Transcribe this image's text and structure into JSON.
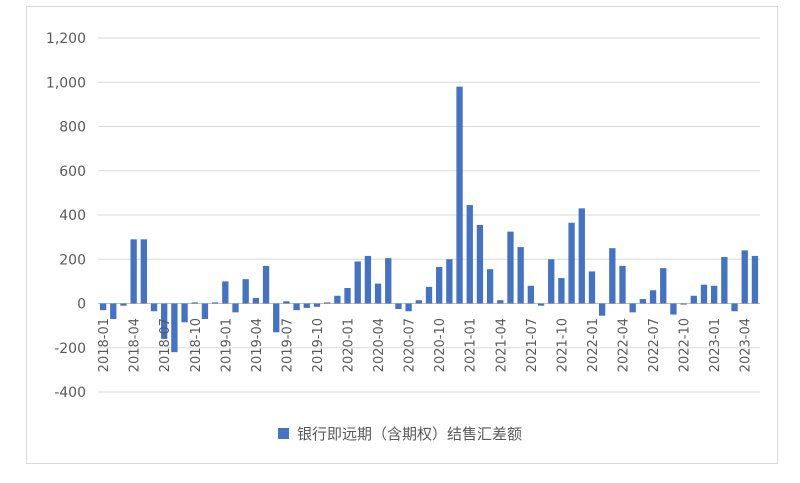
{
  "chart_data": {
    "type": "bar",
    "colors": {
      "bar": "#4472C4",
      "grid": "#d9d9d9",
      "text": "#595959",
      "zero_line": "#bfbfbf"
    },
    "ylim": [
      -400,
      1200
    ],
    "yticks": [
      1200,
      1000,
      800,
      600,
      400,
      200,
      0,
      -200,
      -400
    ],
    "ytick_labels": [
      "1,200",
      "1,000",
      "800",
      "600",
      "400",
      "200",
      "0",
      "-200",
      "-400"
    ],
    "grid": true,
    "legend_position": "bottom",
    "series": [
      {
        "name": "银行即远期（含期权）结售汇差额",
        "values": [
          -30,
          -70,
          -10,
          290,
          290,
          -35,
          -160,
          -220,
          -85,
          5,
          -70,
          5,
          100,
          -40,
          110,
          25,
          170,
          -130,
          10,
          -30,
          -20,
          -15,
          5,
          35,
          70,
          190,
          215,
          90,
          205,
          -25,
          -35,
          15,
          75,
          165,
          200,
          980,
          445,
          355,
          155,
          15,
          325,
          255,
          80,
          -10,
          200,
          115,
          365,
          430,
          145,
          -55,
          250,
          170,
          -40,
          20,
          60,
          160,
          -50,
          -5,
          35,
          85,
          80,
          210,
          -35,
          240,
          215
        ]
      }
    ],
    "tick_labels": [
      {
        "index": 0,
        "label": "2018-01"
      },
      {
        "index": 3,
        "label": "2018-04"
      },
      {
        "index": 6,
        "label": "2018-07"
      },
      {
        "index": 9,
        "label": "2018-10"
      },
      {
        "index": 12,
        "label": "2019-01"
      },
      {
        "index": 15,
        "label": "2019-04"
      },
      {
        "index": 18,
        "label": "2019-07"
      },
      {
        "index": 21,
        "label": "2019-10"
      },
      {
        "index": 24,
        "label": "2020-01"
      },
      {
        "index": 27,
        "label": "2020-04"
      },
      {
        "index": 30,
        "label": "2020-07"
      },
      {
        "index": 33,
        "label": "2020-10"
      },
      {
        "index": 36,
        "label": "2021-01"
      },
      {
        "index": 39,
        "label": "2021-04"
      },
      {
        "index": 42,
        "label": "2021-07"
      },
      {
        "index": 45,
        "label": "2021-10"
      },
      {
        "index": 48,
        "label": "2022-01"
      },
      {
        "index": 51,
        "label": "2022-04"
      },
      {
        "index": 54,
        "label": "2022-07"
      },
      {
        "index": 57,
        "label": "2022-10"
      },
      {
        "index": 60,
        "label": "2023-01"
      },
      {
        "index": 63,
        "label": "2023-04"
      }
    ]
  }
}
